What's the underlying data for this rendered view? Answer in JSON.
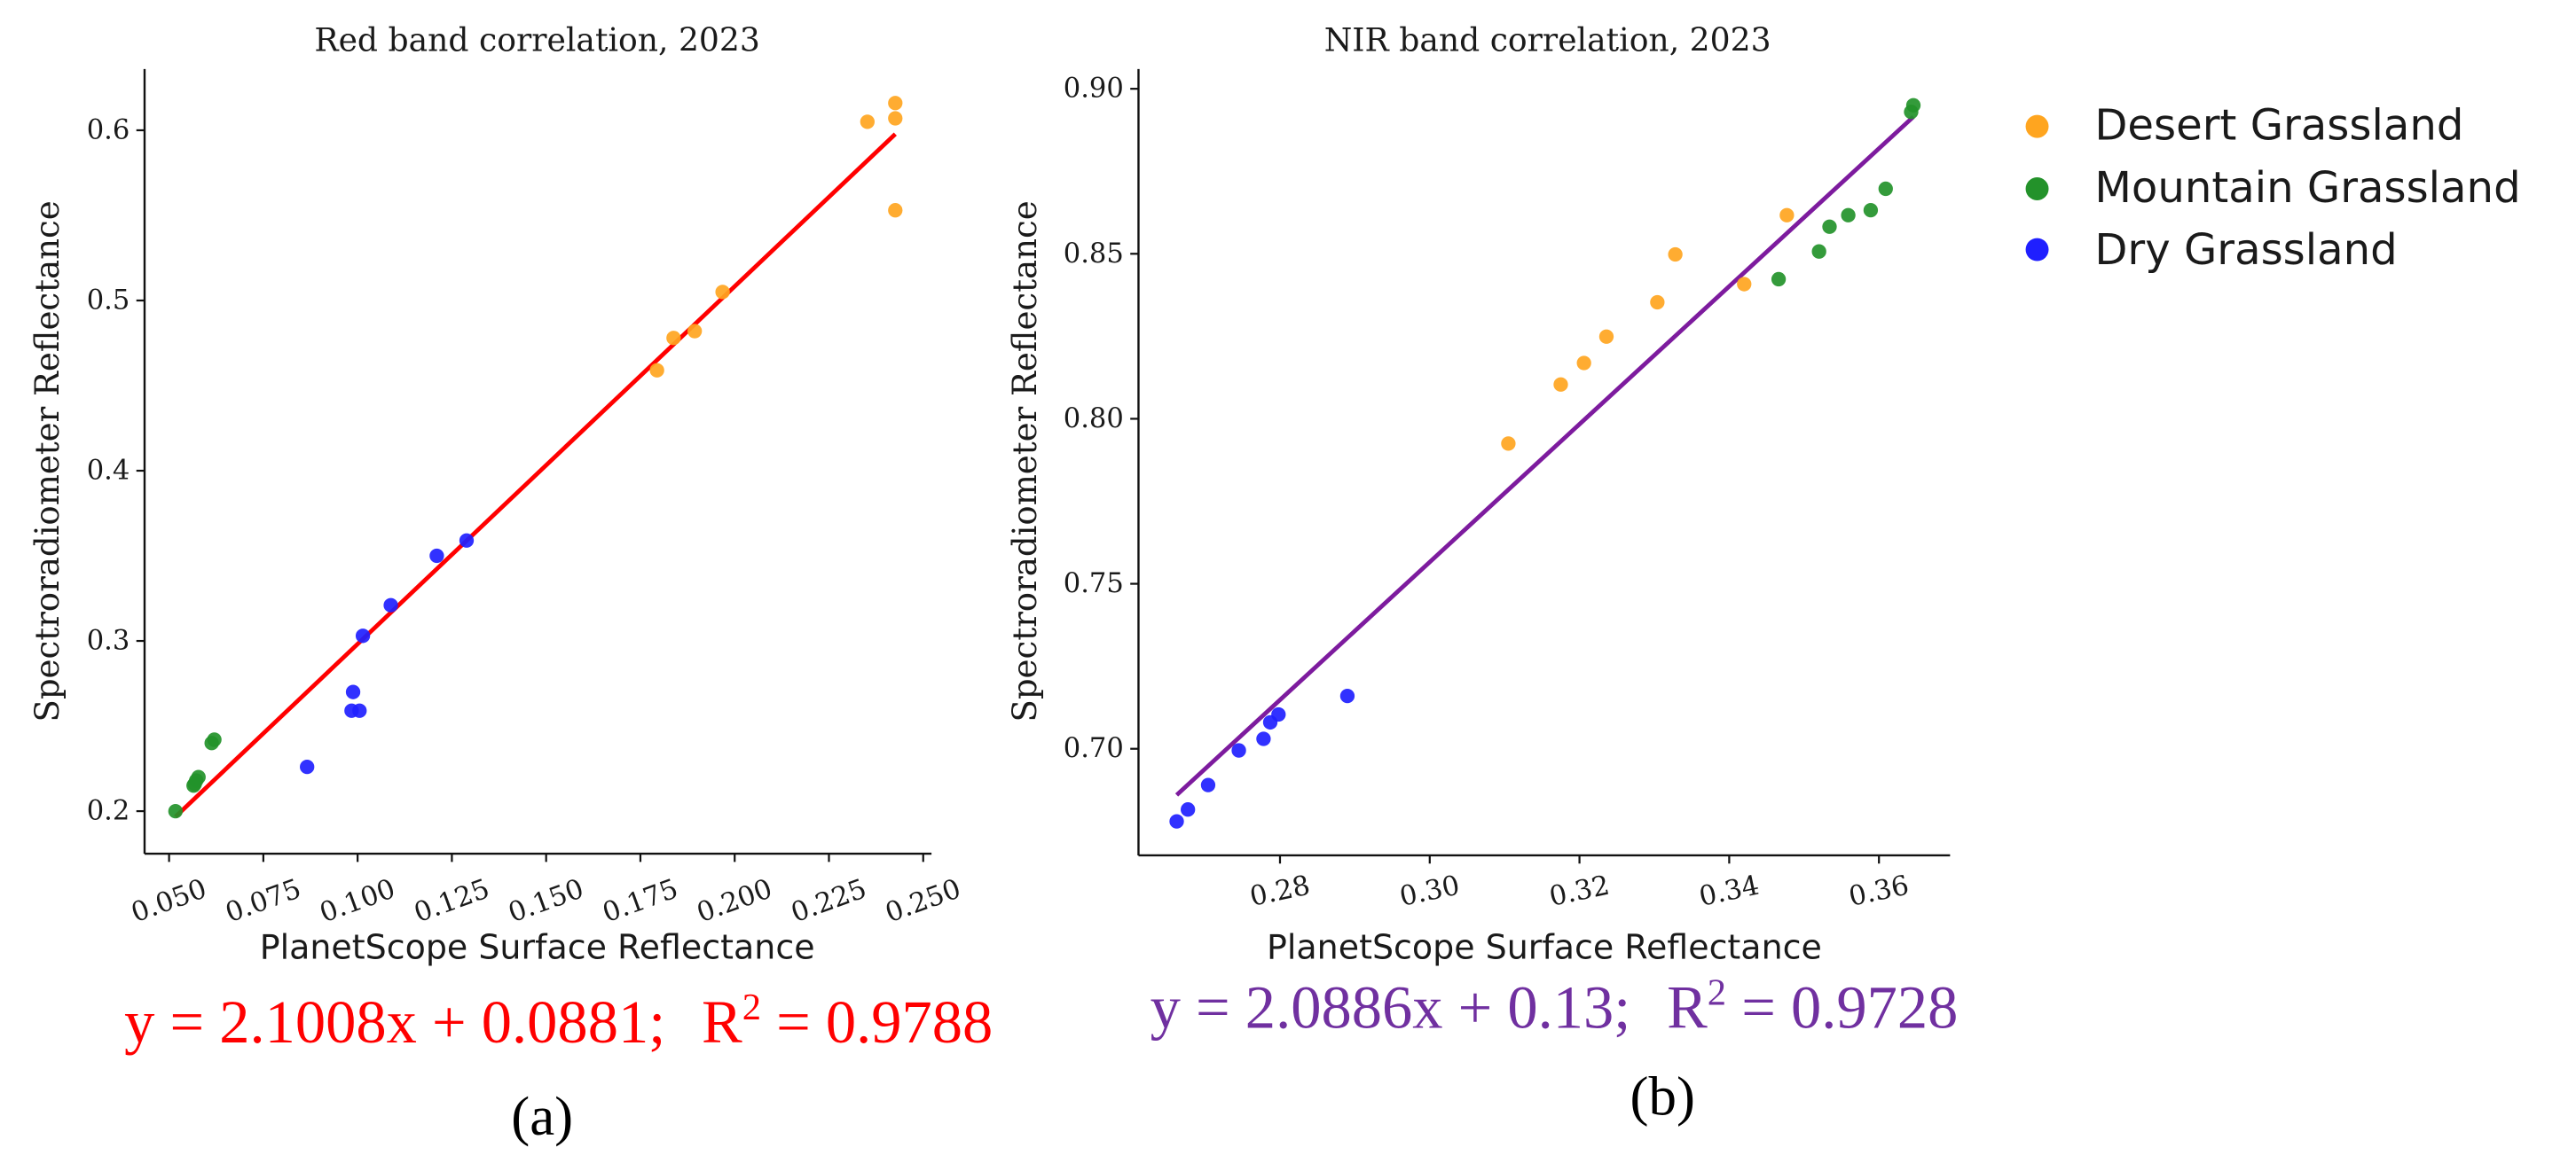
{
  "figure": {
    "background": "#ffffff"
  },
  "legend": {
    "entries": [
      {
        "label": "Desert Grassland",
        "color": "#ffa51f"
      },
      {
        "label": "Mountain Grassland",
        "color": "#23922a"
      },
      {
        "label": "Dry Grassland",
        "color": "#1f1fff"
      }
    ]
  },
  "chart_data": [
    {
      "type": "scatter",
      "panel_label": "(a)",
      "title": "Red band correlation, 2023",
      "xlabel": "PlanetScope Surface Reflectance",
      "ylabel": "Spectroradiometer Reflectance",
      "xlim": [
        0.0435,
        0.2522
      ],
      "ylim": [
        0.175,
        0.636
      ],
      "grid": false,
      "xticks": [
        "0.050",
        "0.075",
        "0.100",
        "0.125",
        "0.150",
        "0.175",
        "0.200",
        "0.225",
        "0.250"
      ],
      "yticks": [
        "0.2",
        "0.3",
        "0.4",
        "0.5",
        "0.6"
      ],
      "series": [
        {
          "name": "Desert Grassland",
          "color": "#ffa51f",
          "points": [
            [
              0.1794,
              0.459
            ],
            [
              0.1838,
              0.478
            ],
            [
              0.1894,
              0.482
            ],
            [
              0.1968,
              0.505
            ],
            [
              0.2352,
              0.605
            ],
            [
              0.2426,
              0.616
            ],
            [
              0.2426,
              0.607
            ],
            [
              0.2426,
              0.553
            ]
          ]
        },
        {
          "name": "Mountain Grassland",
          "color": "#23922a",
          "points": [
            [
              0.0517,
              0.2
            ],
            [
              0.0565,
              0.215
            ],
            [
              0.0568,
              0.216
            ],
            [
              0.0572,
              0.218
            ],
            [
              0.0578,
              0.22
            ],
            [
              0.0613,
              0.24
            ],
            [
              0.062,
              0.242
            ]
          ]
        },
        {
          "name": "Dry Grassland",
          "color": "#1f1fff",
          "points": [
            [
              0.0866,
              0.226
            ],
            [
              0.0984,
              0.259
            ],
            [
              0.1005,
              0.259
            ],
            [
              0.0988,
              0.27
            ],
            [
              0.1014,
              0.303
            ],
            [
              0.1088,
              0.321
            ],
            [
              0.121,
              0.35
            ],
            [
              0.1289,
              0.359
            ]
          ]
        }
      ],
      "fit": {
        "slope": 2.1008,
        "intercept": 0.0881,
        "r2": 0.9788,
        "line_color": "#ff0000",
        "text_color": "#ff0000",
        "equation": "y = 2.1008x + 0.0881;",
        "r_symbol": "R",
        "r_exponent": "2",
        "r_value": " = 0.9788"
      }
    },
    {
      "type": "scatter",
      "panel_label": "(b)",
      "title": "NIR band correlation, 2023",
      "xlabel": "PlanetScope Surface Reflectance",
      "ylabel": "Spectroradiometer Reflectance",
      "xlim": [
        0.2611,
        0.3695
      ],
      "ylim": [
        0.6677,
        0.906
      ],
      "grid": false,
      "xticks": [
        "0.28",
        "0.30",
        "0.32",
        "0.34",
        "0.36"
      ],
      "yticks": [
        "0.70",
        "0.75",
        "0.80",
        "0.85",
        "0.90"
      ],
      "series": [
        {
          "name": "Desert Grassland",
          "color": "#ffa51f",
          "points": [
            [
              0.3105,
              0.7925
            ],
            [
              0.3175,
              0.8104
            ],
            [
              0.3206,
              0.8169
            ],
            [
              0.3236,
              0.8249
            ],
            [
              0.3304,
              0.8353
            ],
            [
              0.3328,
              0.8498
            ],
            [
              0.342,
              0.8408
            ],
            [
              0.3477,
              0.8617
            ]
          ]
        },
        {
          "name": "Mountain Grassland",
          "color": "#23922a",
          "points": [
            [
              0.3466,
              0.8423
            ],
            [
              0.352,
              0.8507
            ],
            [
              0.3534,
              0.8582
            ],
            [
              0.3559,
              0.8617
            ],
            [
              0.3589,
              0.8632
            ],
            [
              0.3609,
              0.8697
            ],
            [
              0.3646,
              0.895
            ],
            [
              0.3643,
              0.893
            ]
          ]
        },
        {
          "name": "Dry Grassland",
          "color": "#1f1fff",
          "points": [
            [
              0.2662,
              0.678
            ],
            [
              0.2677,
              0.6816
            ],
            [
              0.2704,
              0.689
            ],
            [
              0.2745,
              0.6995
            ],
            [
              0.2778,
              0.703
            ],
            [
              0.2787,
              0.708
            ],
            [
              0.2798,
              0.7104
            ],
            [
              0.289,
              0.716
            ]
          ]
        }
      ],
      "fit": {
        "slope": 2.0886,
        "intercept": 0.13,
        "r2": 0.9728,
        "line_color": "#7d1b9e",
        "text_color": "#7030a0",
        "equation": "y = 2.0886x + 0.13;",
        "r_symbol": "R",
        "r_exponent": "2",
        "r_value": " = 0.9728"
      }
    }
  ]
}
